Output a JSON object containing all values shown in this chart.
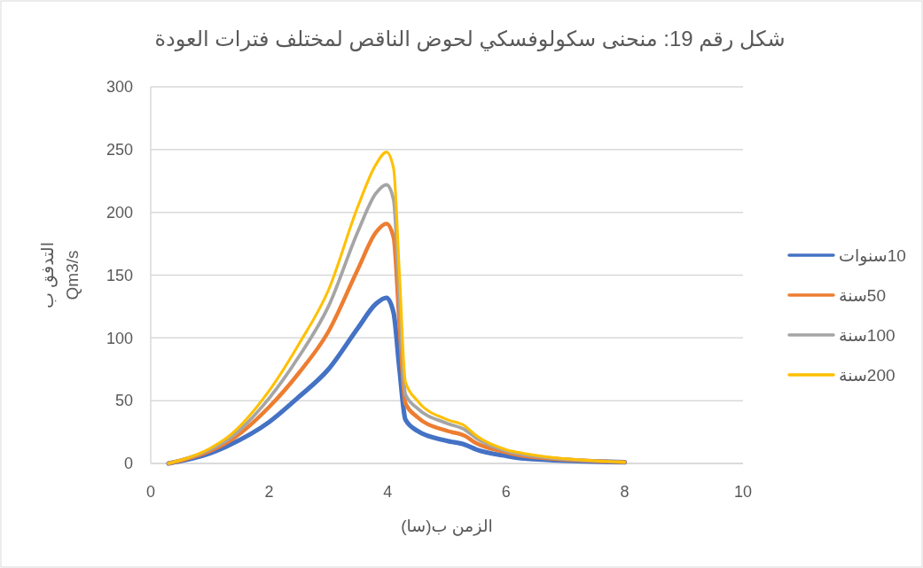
{
  "chart_data": {
    "type": "line",
    "title": "شكل رقم 19: منحنى سكولوفسكي لحوض الناقص لمختلف فترات العودة",
    "xlabel": "الزمن ب(سا)",
    "ylabel": "التدفق ب\nQm3/s",
    "x": [
      0.3,
      1,
      1.3,
      2,
      2.5,
      3,
      3.5,
      3.8,
      3.98,
      4.1,
      4.2,
      4.3,
      4.5,
      5,
      5.3,
      5.5,
      6,
      6.3,
      8
    ],
    "series": [
      {
        "name": "10سنوات",
        "color": "#4472c4",
        "values": [
          0,
          8,
          14,
          33,
          53,
          75,
          108,
          127,
          132,
          120,
          75,
          35,
          26,
          18,
          15,
          11,
          6,
          4,
          1
        ]
      },
      {
        "name": "50سنة",
        "color": "#ed7d31",
        "values": [
          0,
          10,
          17,
          45,
          72,
          105,
          155,
          184,
          191,
          180,
          110,
          48,
          37,
          26,
          22,
          16,
          9,
          6,
          1
        ]
      },
      {
        "name": "100سنة",
        "color": "#a5a5a5",
        "values": [
          0,
          11,
          19,
          52,
          85,
          125,
          185,
          215,
          222,
          210,
          130,
          55,
          44,
          32,
          27,
          20,
          10,
          7,
          1
        ]
      },
      {
        "name": "200سنة",
        "color": "#ffc000",
        "values": [
          0,
          12,
          21,
          58,
          95,
          138,
          205,
          238,
          248,
          235,
          150,
          65,
          50,
          35,
          30,
          22,
          11,
          8,
          1
        ]
      }
    ],
    "xlim": [
      0,
      10
    ],
    "ylim": [
      0,
      300
    ],
    "xticks": [
      0,
      2,
      4,
      6,
      8,
      10
    ],
    "yticks": [
      0,
      50,
      100,
      150,
      200,
      250,
      300
    ],
    "grid": "y",
    "legend": "right",
    "marker": "none",
    "line_style": "solid"
  }
}
